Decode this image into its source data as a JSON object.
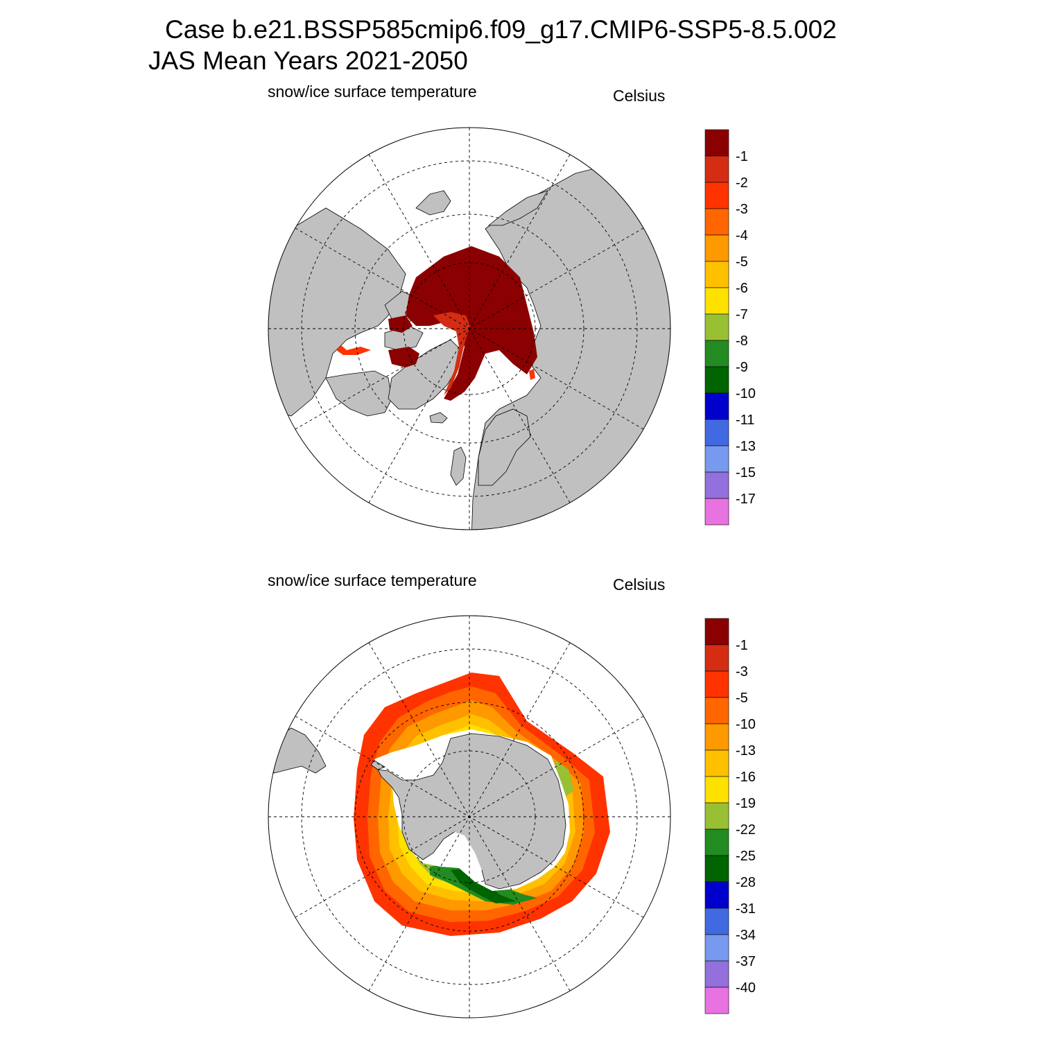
{
  "header": {
    "title_line_1": "Case b.e21.BSSP585cmip6.f09_g17.CMIP6-SSP5-8.5.002",
    "title_line_2": "JAS Mean   Years 2021-2050"
  },
  "colors": {
    "land": "#c0c0c0",
    "ocean": "#ffffff",
    "outline": "#000000"
  },
  "panels": [
    {
      "id": "north",
      "hemisphere": "Northern Hemisphere (polar stereographic)",
      "field_label": "snow/ice surface temperature",
      "units_label": "Celsius",
      "colorbar": {
        "colors": [
          "#8b0000",
          "#d42d14",
          "#ff3300",
          "#ff6600",
          "#ff9900",
          "#ffc000",
          "#ffe100",
          "#99c033",
          "#228b22",
          "#006400",
          "#0000cd",
          "#4169e1",
          "#7799ee",
          "#9370db",
          "#e772e0"
        ],
        "labels": [
          "-1",
          "-2",
          "-3",
          "-4",
          "-5",
          "-6",
          "-7",
          "-8",
          "-9",
          "-10",
          "-11",
          "-13",
          "-15",
          "-17"
        ]
      }
    },
    {
      "id": "south",
      "hemisphere": "Southern Hemisphere (polar stereographic)",
      "field_label": "snow/ice surface temperature",
      "units_label": "Celsius",
      "colorbar": {
        "colors": [
          "#8b0000",
          "#d42d14",
          "#ff3300",
          "#ff6600",
          "#ff9900",
          "#ffc000",
          "#ffe100",
          "#99c033",
          "#228b22",
          "#006400",
          "#0000cd",
          "#4169e1",
          "#7799ee",
          "#9370db",
          "#e772e0"
        ],
        "labels": [
          "-1",
          "-3",
          "-5",
          "-10",
          "-13",
          "-16",
          "-19",
          "-22",
          "-25",
          "-28",
          "-31",
          "-34",
          "-37",
          "-40"
        ]
      }
    }
  ]
}
